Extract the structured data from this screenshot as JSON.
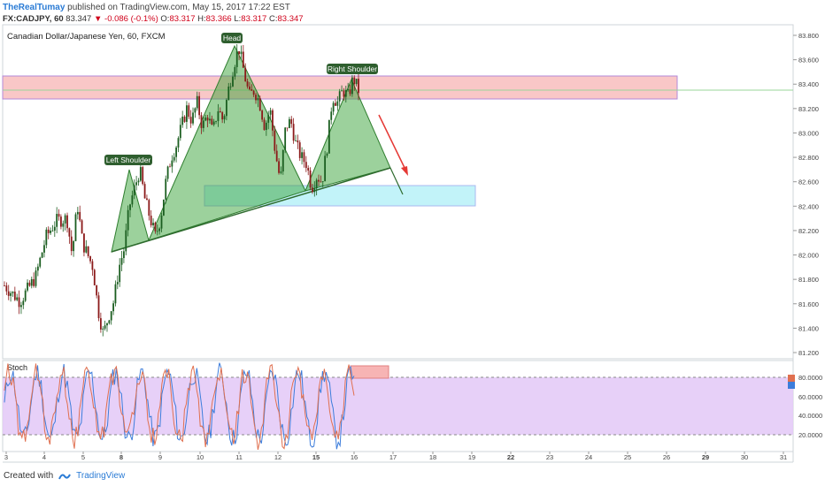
{
  "header": {
    "author": "TheRealTumay",
    "published": "published on TradingView.com, May 15, 2017 17:22 EST",
    "symbol": "FX:CADJPY, 60",
    "last": "83.347",
    "arrow": "▼",
    "change": "-0.086 (-0.1%)",
    "o_label": "O:",
    "o": "83.317",
    "h_label": "H:",
    "h": "83.366",
    "l_label": "L:",
    "l": "83.317",
    "c_label": "C:",
    "c": "83.347"
  },
  "footer": {
    "created": "Created with",
    "brand": "TradingView"
  },
  "chart_data": {
    "type": "candlestick",
    "title": "Canadian Dollar/Japanese Yen, 60, FXCM",
    "colors": {
      "up": "#1b5e20",
      "down": "#8b1a1a",
      "pattern": "#3aa33a",
      "resistance": "#f5a0a0",
      "target": "#a8ecf5",
      "stoch_bg": "#e3c8f7",
      "stoch_k": "#3d7ddb",
      "stoch_d": "#e07050"
    },
    "yaxis": {
      "ticks": [
        "83.800",
        "83.600",
        "83.400",
        "83.200",
        "83.000",
        "82.800",
        "82.600",
        "82.400",
        "82.200",
        "82.000",
        "81.800",
        "81.600",
        "81.400",
        "81.200"
      ],
      "range": [
        81.2,
        83.8
      ]
    },
    "xaxis": {
      "ticks": [
        "3",
        "4",
        "5",
        "8",
        "9",
        "10",
        "11",
        "12",
        "15",
        "16",
        "17",
        "18",
        "19",
        "22",
        "23",
        "24",
        "25",
        "26",
        "29",
        "30",
        "31"
      ]
    },
    "annotations": {
      "head": "Head",
      "left_shoulder": "Left Shoulder",
      "right_shoulder": "Right Shoulder"
    },
    "price_path": [
      [
        0,
        81.75
      ],
      [
        3,
        81.62
      ],
      [
        6,
        81.82
      ],
      [
        8,
        82.15
      ],
      [
        10,
        82.28
      ],
      [
        12,
        82.3
      ],
      [
        13,
        82.0
      ],
      [
        14,
        82.42
      ],
      [
        15,
        82.1
      ],
      [
        16,
        82.0
      ],
      [
        17,
        81.9
      ],
      [
        18,
        81.55
      ],
      [
        19,
        81.35
      ],
      [
        20,
        81.5
      ],
      [
        21,
        81.62
      ],
      [
        22,
        81.9
      ],
      [
        23,
        82.05
      ],
      [
        24,
        82.4
      ],
      [
        25,
        82.55
      ],
      [
        26,
        82.7
      ],
      [
        27,
        82.45
      ],
      [
        28,
        82.3
      ],
      [
        29,
        82.15
      ],
      [
        30,
        82.3
      ],
      [
        31,
        82.6
      ],
      [
        32,
        82.8
      ],
      [
        33,
        82.9
      ],
      [
        34,
        83.05
      ],
      [
        35,
        83.2
      ],
      [
        36,
        83.1
      ],
      [
        37,
        83.25
      ],
      [
        38,
        83.05
      ],
      [
        39,
        83.15
      ],
      [
        40,
        83.0
      ],
      [
        41,
        83.2
      ],
      [
        42,
        83.1
      ],
      [
        43,
        83.35
      ],
      [
        44,
        83.55
      ],
      [
        45,
        83.7
      ],
      [
        46,
        83.5
      ],
      [
        47,
        83.3
      ],
      [
        48,
        83.35
      ],
      [
        49,
        83.25
      ],
      [
        50,
        83.05
      ],
      [
        51,
        83.2
      ],
      [
        52,
        82.85
      ],
      [
        53,
        82.6
      ],
      [
        54,
        83.05
      ],
      [
        55,
        83.1
      ],
      [
        56,
        82.9
      ],
      [
        57,
        82.8
      ],
      [
        58,
        82.75
      ],
      [
        59,
        82.55
      ],
      [
        60,
        82.65
      ],
      [
        61,
        82.6
      ],
      [
        62,
        82.9
      ],
      [
        63,
        83.3
      ],
      [
        64,
        83.25
      ],
      [
        65,
        83.35
      ],
      [
        66,
        83.3
      ],
      [
        67,
        83.45
      ],
      [
        68,
        83.35
      ]
    ],
    "stoch_levels": [
      "80.0000",
      "60.0000",
      "40.0000",
      "20.0000"
    ],
    "stoch_label": "Stoch"
  }
}
